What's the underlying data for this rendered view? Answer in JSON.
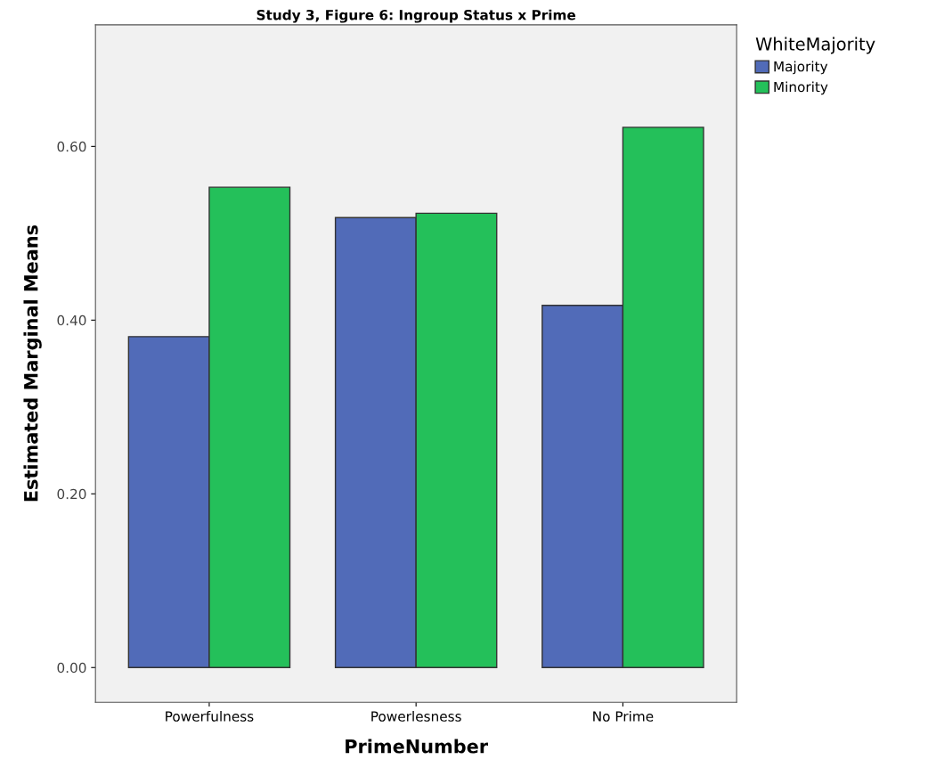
{
  "chart_data": {
    "type": "bar",
    "title": "Study 3, Figure 6: Ingroup Status x Prime",
    "xlabel": "PrimeNumber",
    "ylabel": "Estimated Marginal Means",
    "legend_title": "WhiteMajority",
    "categories": [
      "Powerfulness",
      "Powerlesness",
      "No Prime"
    ],
    "series": [
      {
        "name": "Majority",
        "color": "#516bb8",
        "values": [
          0.381,
          0.518,
          0.417
        ]
      },
      {
        "name": "Minority",
        "color": "#24c05a",
        "values": [
          0.553,
          0.523,
          0.622
        ]
      }
    ],
    "ylim": [
      -0.04,
      0.74
    ],
    "yticks": [
      {
        "value": 0,
        "label": "0.00"
      },
      {
        "value": 0.2,
        "label": "0.20"
      },
      {
        "value": 0.4,
        "label": "0.40"
      },
      {
        "value": 0.6,
        "label": "0.60"
      }
    ],
    "grid": false,
    "legend": "top right"
  }
}
